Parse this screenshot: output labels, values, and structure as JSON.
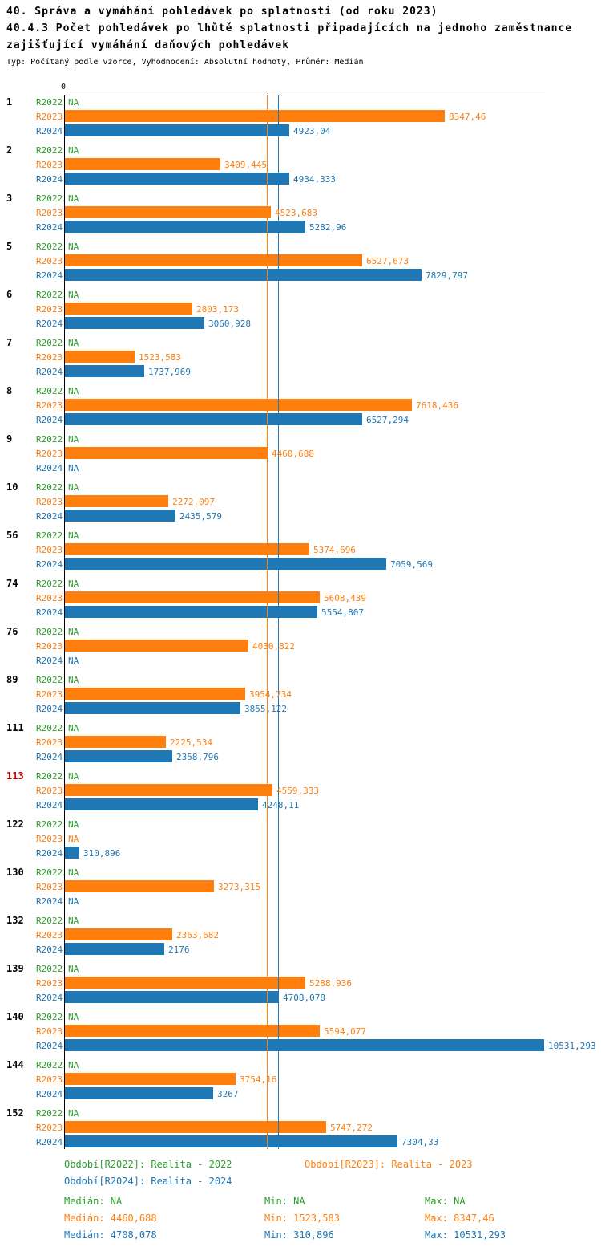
{
  "chart_data": {
    "type": "bar",
    "orientation": "horizontal",
    "title_lines": [
      "40. Správa a vymáhání pohledávek po splatnosti (od roku 2023)",
      "40.4.3 Počet pohledávek po lhůtě splatnosti připadajících na jednoho zaměstnance",
      "zajišťující vymáhání daňových pohledávek"
    ],
    "subtitle": "Typ: Počítaný podle vzorce, Vyhodnocení: Absolutní hodnoty, Průměr: Medián",
    "axis_zero_label": "0",
    "xlim": [
      0,
      10550
    ],
    "series": [
      "R2022",
      "R2023",
      "R2024"
    ],
    "na_text": "NA",
    "colors": {
      "r2022": "#2ca02c",
      "r2023": "#ff7f0e",
      "r2024": "#1f77b4",
      "highlight": "#cc0000",
      "axis": "#000000"
    },
    "reference_lines": [
      {
        "series": "R2023",
        "value": 4460.688,
        "color": "#ff7f0e"
      },
      {
        "series": "R2024",
        "value": 4708.078,
        "color": "#1f77b4"
      }
    ],
    "groups": [
      {
        "id": "1",
        "highlight": false,
        "rows": [
          {
            "series": "R2022",
            "value": null,
            "display": "NA"
          },
          {
            "series": "R2023",
            "value": 8347.46,
            "display": "8347,46"
          },
          {
            "series": "R2024",
            "value": 4923.04,
            "display": "4923,04"
          }
        ]
      },
      {
        "id": "2",
        "highlight": false,
        "rows": [
          {
            "series": "R2022",
            "value": null,
            "display": "NA"
          },
          {
            "series": "R2023",
            "value": 3409.445,
            "display": "3409,445"
          },
          {
            "series": "R2024",
            "value": 4934.333,
            "display": "4934,333"
          }
        ]
      },
      {
        "id": "3",
        "highlight": false,
        "rows": [
          {
            "series": "R2022",
            "value": null,
            "display": "NA"
          },
          {
            "series": "R2023",
            "value": 4523.683,
            "display": "4523,683"
          },
          {
            "series": "R2024",
            "value": 5282.96,
            "display": "5282,96"
          }
        ]
      },
      {
        "id": "5",
        "highlight": false,
        "rows": [
          {
            "series": "R2022",
            "value": null,
            "display": "NA"
          },
          {
            "series": "R2023",
            "value": 6527.673,
            "display": "6527,673"
          },
          {
            "series": "R2024",
            "value": 7829.797,
            "display": "7829,797"
          }
        ]
      },
      {
        "id": "6",
        "highlight": false,
        "rows": [
          {
            "series": "R2022",
            "value": null,
            "display": "NA"
          },
          {
            "series": "R2023",
            "value": 2803.173,
            "display": "2803,173"
          },
          {
            "series": "R2024",
            "value": 3060.928,
            "display": "3060,928"
          }
        ]
      },
      {
        "id": "7",
        "highlight": false,
        "rows": [
          {
            "series": "R2022",
            "value": null,
            "display": "NA"
          },
          {
            "series": "R2023",
            "value": 1523.583,
            "display": "1523,583"
          },
          {
            "series": "R2024",
            "value": 1737.969,
            "display": "1737,969"
          }
        ]
      },
      {
        "id": "8",
        "highlight": false,
        "rows": [
          {
            "series": "R2022",
            "value": null,
            "display": "NA"
          },
          {
            "series": "R2023",
            "value": 7618.436,
            "display": "7618,436"
          },
          {
            "series": "R2024",
            "value": 6527.294,
            "display": "6527,294"
          }
        ]
      },
      {
        "id": "9",
        "highlight": false,
        "rows": [
          {
            "series": "R2022",
            "value": null,
            "display": "NA"
          },
          {
            "series": "R2023",
            "value": 4460.688,
            "display": "4460,688"
          },
          {
            "series": "R2024",
            "value": null,
            "display": "NA"
          }
        ]
      },
      {
        "id": "10",
        "highlight": false,
        "rows": [
          {
            "series": "R2022",
            "value": null,
            "display": "NA"
          },
          {
            "series": "R2023",
            "value": 2272.097,
            "display": "2272,097"
          },
          {
            "series": "R2024",
            "value": 2435.579,
            "display": "2435,579"
          }
        ]
      },
      {
        "id": "56",
        "highlight": false,
        "rows": [
          {
            "series": "R2022",
            "value": null,
            "display": "NA"
          },
          {
            "series": "R2023",
            "value": 5374.696,
            "display": "5374,696"
          },
          {
            "series": "R2024",
            "value": 7059.569,
            "display": "7059,569"
          }
        ]
      },
      {
        "id": "74",
        "highlight": false,
        "rows": [
          {
            "series": "R2022",
            "value": null,
            "display": "NA"
          },
          {
            "series": "R2023",
            "value": 5608.439,
            "display": "5608,439"
          },
          {
            "series": "R2024",
            "value": 5554.807,
            "display": "5554,807"
          }
        ]
      },
      {
        "id": "76",
        "highlight": false,
        "rows": [
          {
            "series": "R2022",
            "value": null,
            "display": "NA"
          },
          {
            "series": "R2023",
            "value": 4030.822,
            "display": "4030,822"
          },
          {
            "series": "R2024",
            "value": null,
            "display": "NA"
          }
        ]
      },
      {
        "id": "89",
        "highlight": false,
        "rows": [
          {
            "series": "R2022",
            "value": null,
            "display": "NA"
          },
          {
            "series": "R2023",
            "value": 3954.734,
            "display": "3954,734"
          },
          {
            "series": "R2024",
            "value": 3855.122,
            "display": "3855,122"
          }
        ]
      },
      {
        "id": "111",
        "highlight": false,
        "rows": [
          {
            "series": "R2022",
            "value": null,
            "display": "NA"
          },
          {
            "series": "R2023",
            "value": 2225.534,
            "display": "2225,534"
          },
          {
            "series": "R2024",
            "value": 2358.796,
            "display": "2358,796"
          }
        ]
      },
      {
        "id": "113",
        "highlight": true,
        "rows": [
          {
            "series": "R2022",
            "value": null,
            "display": "NA"
          },
          {
            "series": "R2023",
            "value": 4559.333,
            "display": "4559,333"
          },
          {
            "series": "R2024",
            "value": 4248.11,
            "display": "4248,11"
          }
        ]
      },
      {
        "id": "122",
        "highlight": false,
        "rows": [
          {
            "series": "R2022",
            "value": null,
            "display": "NA"
          },
          {
            "series": "R2023",
            "value": null,
            "display": "NA"
          },
          {
            "series": "R2024",
            "value": 310.896,
            "display": "310,896"
          }
        ]
      },
      {
        "id": "130",
        "highlight": false,
        "rows": [
          {
            "series": "R2022",
            "value": null,
            "display": "NA"
          },
          {
            "series": "R2023",
            "value": 3273.315,
            "display": "3273,315"
          },
          {
            "series": "R2024",
            "value": null,
            "display": "NA"
          }
        ]
      },
      {
        "id": "132",
        "highlight": false,
        "rows": [
          {
            "series": "R2022",
            "value": null,
            "display": "NA"
          },
          {
            "series": "R2023",
            "value": 2363.682,
            "display": "2363,682"
          },
          {
            "series": "R2024",
            "value": 2176,
            "display": "2176"
          }
        ]
      },
      {
        "id": "139",
        "highlight": false,
        "rows": [
          {
            "series": "R2022",
            "value": null,
            "display": "NA"
          },
          {
            "series": "R2023",
            "value": 5288.936,
            "display": "5288,936"
          },
          {
            "series": "R2024",
            "value": 4708.078,
            "display": "4708,078"
          }
        ]
      },
      {
        "id": "140",
        "highlight": false,
        "rows": [
          {
            "series": "R2022",
            "value": null,
            "display": "NA"
          },
          {
            "series": "R2023",
            "value": 5594.077,
            "display": "5594,077"
          },
          {
            "series": "R2024",
            "value": 10531.293,
            "display": "10531,293"
          }
        ]
      },
      {
        "id": "144",
        "highlight": false,
        "rows": [
          {
            "series": "R2022",
            "value": null,
            "display": "NA"
          },
          {
            "series": "R2023",
            "value": 3754.16,
            "display": "3754,16"
          },
          {
            "series": "R2024",
            "value": 3267,
            "display": "3267"
          }
        ]
      },
      {
        "id": "152",
        "highlight": false,
        "rows": [
          {
            "series": "R2022",
            "value": null,
            "display": "NA"
          },
          {
            "series": "R2023",
            "value": 5747.272,
            "display": "5747,272"
          },
          {
            "series": "R2024",
            "value": 7304.33,
            "display": "7304,33"
          }
        ]
      }
    ]
  },
  "legend": {
    "r2022": "Období[R2022]: Realita - 2022",
    "r2023": "Období[R2023]: Realita - 2023",
    "r2024": "Období[R2024]: Realita - 2024"
  },
  "stats": {
    "r2022": {
      "median": "Medián: NA",
      "min": "Min: NA",
      "max": "Max: NA"
    },
    "r2023": {
      "median": "Medián: 4460,688",
      "min": "Min: 1523,583",
      "max": "Max: 8347,46"
    },
    "r2024": {
      "median": "Medián: 4708,078",
      "min": "Min: 310,896",
      "max": "Max: 10531,293"
    }
  }
}
